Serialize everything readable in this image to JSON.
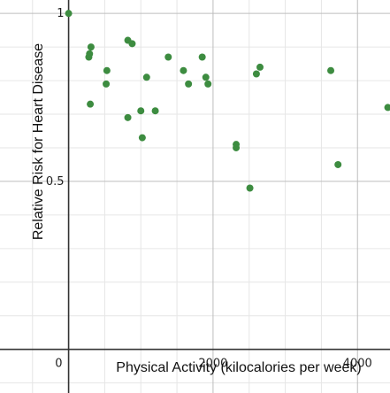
{
  "chart_data": {
    "type": "scatter",
    "title": "",
    "xlabel": "Physical Activity (kilocalories per week)",
    "ylabel": "Relative Risk for Heart Disease",
    "xlim": [
      -950,
      4450
    ],
    "ylim": [
      -0.13,
      1.04
    ],
    "x_ticks": [
      {
        "value": 0,
        "label": "0"
      },
      {
        "value": 2000,
        "label": "2000"
      },
      {
        "value": 4000,
        "label": "4000"
      }
    ],
    "y_ticks": [
      {
        "value": 0.5,
        "label": "0.5"
      },
      {
        "value": 1,
        "label": "1"
      }
    ],
    "grid": true,
    "grid_step_x": 500,
    "grid_step_y": 0.1,
    "point_color": "#3d8c40",
    "points": [
      {
        "x": 0,
        "y": 1.0
      },
      {
        "x": 280,
        "y": 0.87
      },
      {
        "x": 290,
        "y": 0.88
      },
      {
        "x": 310,
        "y": 0.9
      },
      {
        "x": 300,
        "y": 0.73
      },
      {
        "x": 530,
        "y": 0.83
      },
      {
        "x": 520,
        "y": 0.79
      },
      {
        "x": 820,
        "y": 0.92
      },
      {
        "x": 880,
        "y": 0.91
      },
      {
        "x": 820,
        "y": 0.69
      },
      {
        "x": 1000,
        "y": 0.71
      },
      {
        "x": 1020,
        "y": 0.63
      },
      {
        "x": 1080,
        "y": 0.81
      },
      {
        "x": 1200,
        "y": 0.71
      },
      {
        "x": 1380,
        "y": 0.87
      },
      {
        "x": 1590,
        "y": 0.83
      },
      {
        "x": 1660,
        "y": 0.79
      },
      {
        "x": 1850,
        "y": 0.87
      },
      {
        "x": 1900,
        "y": 0.81
      },
      {
        "x": 1930,
        "y": 0.79
      },
      {
        "x": 2320,
        "y": 0.61
      },
      {
        "x": 2320,
        "y": 0.6
      },
      {
        "x": 2510,
        "y": 0.48
      },
      {
        "x": 2600,
        "y": 0.82
      },
      {
        "x": 2650,
        "y": 0.84
      },
      {
        "x": 3630,
        "y": 0.83
      },
      {
        "x": 3730,
        "y": 0.55
      },
      {
        "x": 4420,
        "y": 0.72
      }
    ]
  }
}
